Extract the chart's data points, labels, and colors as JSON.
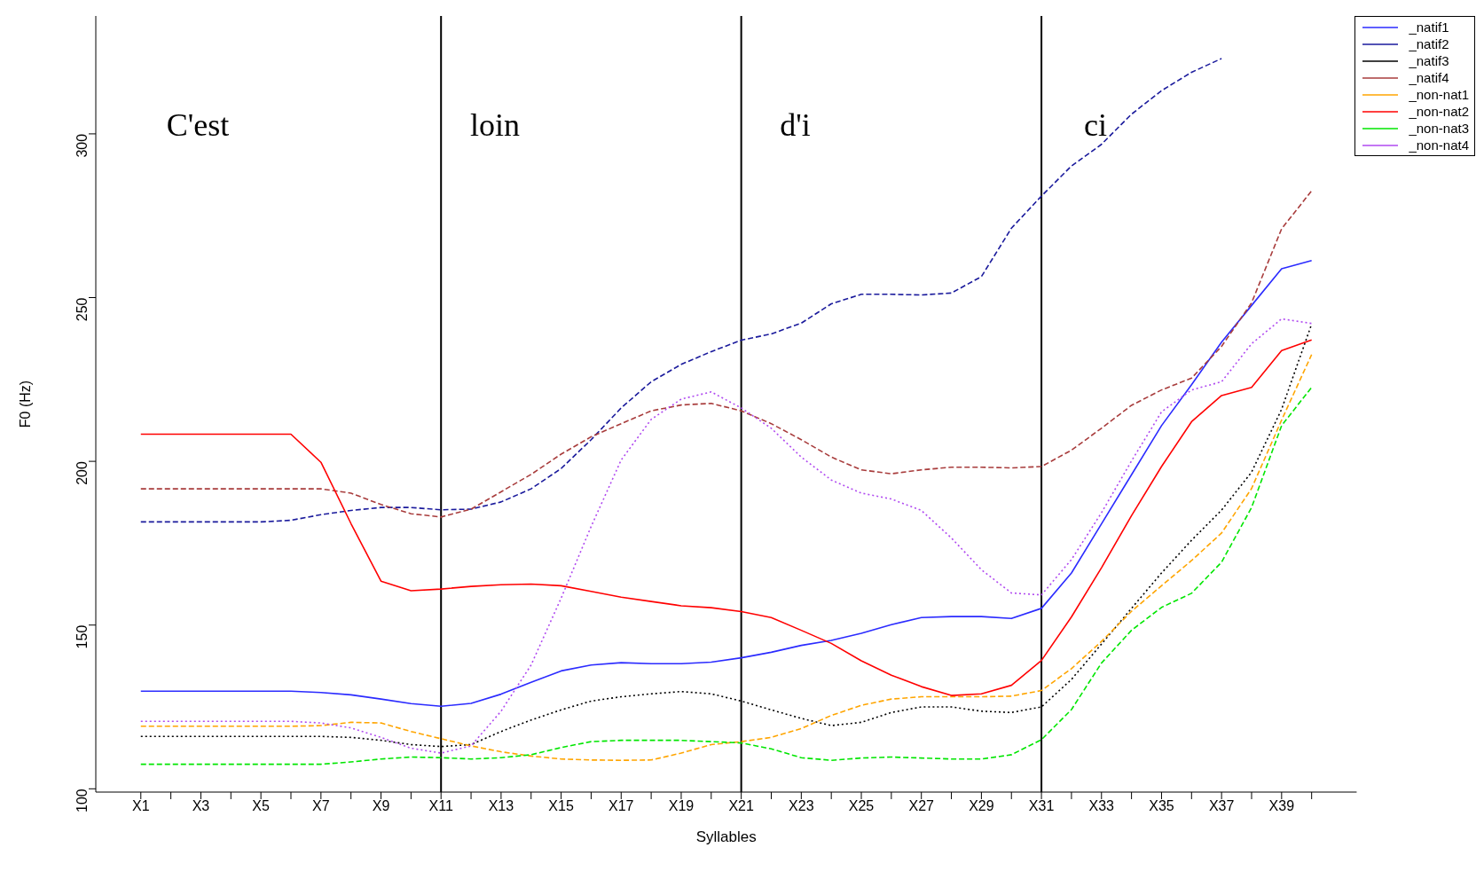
{
  "chart_data": {
    "type": "line",
    "xlabel": "Syllables",
    "ylabel": "F0 (Hz)",
    "categories": [
      "X1",
      null,
      "X3",
      null,
      "X5",
      null,
      "X7",
      null,
      "X9",
      null,
      "X11",
      null,
      "X13",
      null,
      "X15",
      null,
      "X17",
      null,
      "X19",
      null,
      "X21",
      null,
      "X23",
      null,
      "X25",
      null,
      "X27",
      null,
      "X29",
      null,
      "X31",
      null,
      "X33",
      null,
      "X35",
      null,
      "X37",
      null,
      "X39",
      null
    ],
    "ylim": [
      99,
      336
    ],
    "yticks": [
      100,
      150,
      200,
      250,
      300
    ],
    "grid": false,
    "legend": "top right",
    "series": [
      {
        "name": "_natif1",
        "color": "#2b2bff",
        "line_style": "solid",
        "values": [
          129.8,
          129.8,
          129.8,
          129.8,
          129.8,
          129.8,
          129.4,
          128.7,
          127.4,
          126,
          125.2,
          126.1,
          128.9,
          132.5,
          136,
          137.8,
          138.5,
          138.2,
          138.2,
          138.7,
          140,
          141.7,
          143.8,
          145.3,
          147.5,
          150.1,
          152.3,
          152.6,
          152.6,
          152,
          155.1,
          165.9,
          180.9,
          195.9,
          210.9,
          223.4,
          236.4,
          247.6,
          258.8,
          261.3
        ]
      },
      {
        "name": "_natif2",
        "color": "#1a1a9c",
        "line_style": "dashed",
        "values": [
          181.5,
          181.5,
          181.5,
          181.5,
          181.5,
          182,
          183.7,
          185,
          185.9,
          185.9,
          185.2,
          185.4,
          187.6,
          191.6,
          197.8,
          206.6,
          216.3,
          224.3,
          229.6,
          233.5,
          237,
          238.9,
          242.2,
          248.1,
          251,
          251,
          250.8,
          251.4,
          256.4,
          271.2,
          281,
          290.2,
          296.8,
          306,
          313.2,
          318.8,
          323,
          null,
          null,
          null
        ]
      },
      {
        "name": "_natif3",
        "color": "#000000",
        "line_style": "dotted",
        "values": [
          116,
          116,
          116,
          116,
          116,
          116,
          116,
          115.7,
          114.8,
          113.5,
          112.9,
          113.5,
          117.5,
          121,
          124.1,
          126.8,
          128.1,
          129,
          129.7,
          129,
          126.8,
          124.1,
          121.5,
          119.3,
          120.3,
          123.3,
          125,
          125,
          123.7,
          123.3,
          125,
          133.4,
          144.2,
          155.1,
          165.9,
          175.9,
          185.1,
          196.7,
          215.9,
          241.9
        ]
      },
      {
        "name": "_natif4",
        "color": "#a83c3c",
        "line_style": "dashed",
        "values": [
          191.6,
          191.6,
          191.6,
          191.6,
          191.6,
          191.6,
          191.6,
          190.3,
          186.8,
          184,
          183,
          185.4,
          190.7,
          196,
          202.2,
          207.5,
          211.5,
          215.4,
          217.2,
          217.7,
          215.4,
          211.5,
          206.6,
          201.3,
          197.4,
          196.2,
          197.4,
          198.2,
          198.2,
          198,
          198.4,
          203.4,
          210.1,
          217.1,
          221.8,
          225.4,
          235.1,
          248.4,
          271,
          282.6
        ]
      },
      {
        "name": "_non-nat1",
        "color": "#ffa500",
        "line_style": "dashed",
        "values": [
          119.1,
          119.1,
          119.1,
          119.1,
          119.1,
          119.1,
          119.3,
          120.3,
          120.1,
          117.5,
          115.3,
          113.1,
          111.3,
          110,
          109.1,
          108.8,
          108.7,
          108.8,
          110.9,
          113.5,
          114.4,
          115.7,
          118.4,
          122.4,
          125.5,
          127.4,
          128.1,
          128.1,
          128.1,
          128.3,
          130,
          136.7,
          145,
          154.2,
          162,
          169.7,
          178.1,
          191.7,
          212.6,
          232.6
        ]
      },
      {
        "name": "_non-nat2",
        "color": "#ff0000",
        "line_style": "solid",
        "values": [
          208.3,
          208.3,
          208.3,
          208.3,
          208.3,
          208.3,
          199.7,
          181,
          163.4,
          160.5,
          161,
          161.8,
          162.3,
          162.5,
          162,
          160.3,
          158.5,
          157.2,
          155.9,
          155.3,
          154.1,
          152.3,
          148.4,
          144.4,
          139.1,
          134.7,
          131.2,
          128.5,
          129,
          131.6,
          139.2,
          152.5,
          167.5,
          183.4,
          198.4,
          212.1,
          220.1,
          222.6,
          233.8,
          237.1
        ]
      },
      {
        "name": "_non-nat3",
        "color": "#00e600",
        "line_style": "dashed",
        "values": [
          107.5,
          107.5,
          107.5,
          107.5,
          107.5,
          107.5,
          107.5,
          108.2,
          109.1,
          109.7,
          109.5,
          109.1,
          109.5,
          110.4,
          112.6,
          114.4,
          114.8,
          114.8,
          114.8,
          114.4,
          114,
          112.2,
          109.5,
          108.7,
          109.4,
          109.7,
          109.4,
          109.1,
          109.1,
          110.4,
          115,
          124.2,
          138.4,
          148.4,
          155.4,
          159.7,
          169.2,
          185.9,
          210.9,
          222.6
        ]
      },
      {
        "name": "_non-nat4",
        "color": "#b04af0",
        "line_style": "dotted",
        "values": [
          120.6,
          120.6,
          120.6,
          120.6,
          120.6,
          120.6,
          120.1,
          118.6,
          115.7,
          112.4,
          110.9,
          113.1,
          123.7,
          137.8,
          158.2,
          180.1,
          200.4,
          212.8,
          219,
          221.2,
          216.3,
          210.1,
          201.3,
          194.3,
          190.3,
          188.5,
          185,
          176.6,
          166.9,
          159.8,
          159.2,
          170,
          184.3,
          200.1,
          215.1,
          221.8,
          224.3,
          235.9,
          243.5,
          242.1
        ]
      }
    ],
    "ref_lines": [
      {
        "axis": "x",
        "value": "X11",
        "color": "#000000",
        "line_style": "solid"
      },
      {
        "axis": "x",
        "value": "X21",
        "color": "#000000",
        "line_style": "solid"
      },
      {
        "axis": "x",
        "value": "X31",
        "color": "#000000",
        "line_style": "solid"
      }
    ],
    "annotations": [
      "C'est",
      "loin",
      "d'i",
      "ci"
    ]
  }
}
